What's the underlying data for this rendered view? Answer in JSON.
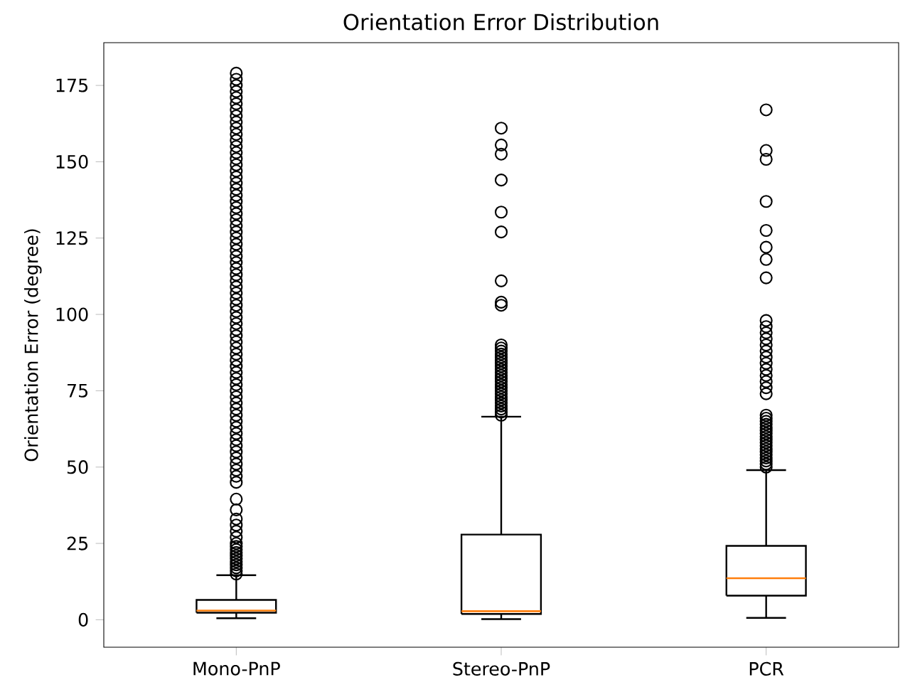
{
  "chart_data": {
    "type": "box",
    "title": "Orientation Error Distribution",
    "ylabel": "Orientation Error (degree)",
    "categories": [
      "Mono-PnP",
      "Stereo-PnP",
      "PCR"
    ],
    "ylim": [
      -9,
      189
    ],
    "yticks": [
      0,
      25,
      50,
      75,
      100,
      125,
      150,
      175
    ],
    "marker": "circle",
    "color": "#000000",
    "boxes": [
      {
        "low": 0.5,
        "q1": 2.3,
        "median": 3,
        "q3": 6.5,
        "high": 14.6,
        "outliers": [
          15,
          16,
          17,
          18,
          19,
          20,
          21,
          22,
          23,
          24,
          25,
          27,
          29,
          31,
          33,
          36,
          39.5,
          45,
          47,
          49,
          51,
          53,
          55,
          57,
          59,
          61,
          63,
          65,
          67,
          69,
          71,
          73,
          75,
          77,
          79,
          81,
          83,
          85,
          87,
          89,
          91,
          93,
          95,
          97,
          99,
          101,
          103,
          105,
          107,
          109,
          111,
          113,
          115,
          117,
          119,
          121,
          123,
          125,
          127,
          129,
          131,
          133,
          135,
          137,
          139,
          141,
          143,
          145,
          147,
          149,
          151,
          153,
          155,
          157,
          159,
          161,
          163,
          165,
          167,
          169,
          171,
          173,
          175,
          177,
          179
        ]
      },
      {
        "low": 0.2,
        "q1": 1.9,
        "median": 2.8,
        "q3": 27.9,
        "high": 66.5,
        "outliers": [
          67,
          68,
          69,
          70,
          71,
          72,
          73,
          74,
          75,
          76,
          77,
          78,
          79,
          80,
          81,
          82,
          83,
          84,
          85,
          86,
          87,
          88,
          89,
          90,
          103,
          104,
          111,
          127,
          133.5,
          144,
          152.5,
          155.5,
          161
        ]
      },
      {
        "low": 0.6,
        "q1": 7.9,
        "median": 13.6,
        "q3": 24.2,
        "high": 49,
        "outliers": [
          50,
          51,
          52,
          53,
          54,
          55,
          56,
          57,
          58,
          59,
          60,
          61,
          62,
          63,
          64,
          65,
          66,
          67,
          74,
          76,
          78,
          80,
          82,
          84,
          86,
          88,
          90,
          92,
          94,
          96,
          98,
          112,
          118,
          122,
          127.5,
          137,
          150.8,
          153.7,
          167
        ]
      }
    ]
  }
}
